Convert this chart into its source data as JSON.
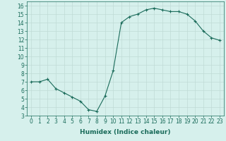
{
  "x": [
    0,
    1,
    2,
    3,
    4,
    5,
    6,
    7,
    8,
    9,
    10,
    11,
    12,
    13,
    14,
    15,
    16,
    17,
    18,
    19,
    20,
    21,
    22,
    23
  ],
  "y": [
    7.0,
    7.0,
    7.3,
    6.2,
    5.7,
    5.2,
    4.7,
    3.7,
    3.5,
    5.3,
    8.3,
    14.0,
    14.7,
    15.0,
    15.5,
    15.7,
    15.5,
    15.3,
    15.3,
    15.0,
    14.2,
    13.0,
    12.2,
    11.9
  ],
  "xlabel": "Humidex (Indice chaleur)",
  "xlim": [
    -0.5,
    23.5
  ],
  "ylim": [
    3,
    16.5
  ],
  "yticks": [
    3,
    4,
    5,
    6,
    7,
    8,
    9,
    10,
    11,
    12,
    13,
    14,
    15,
    16
  ],
  "xticks": [
    0,
    1,
    2,
    3,
    4,
    5,
    6,
    7,
    8,
    9,
    10,
    11,
    12,
    13,
    14,
    15,
    16,
    17,
    18,
    19,
    20,
    21,
    22,
    23
  ],
  "line_color": "#1a6b5a",
  "marker": "+",
  "bg_color": "#d6f0ec",
  "grid_color": "#c0dbd6",
  "label_fontsize": 6.5,
  "tick_fontsize": 5.5
}
